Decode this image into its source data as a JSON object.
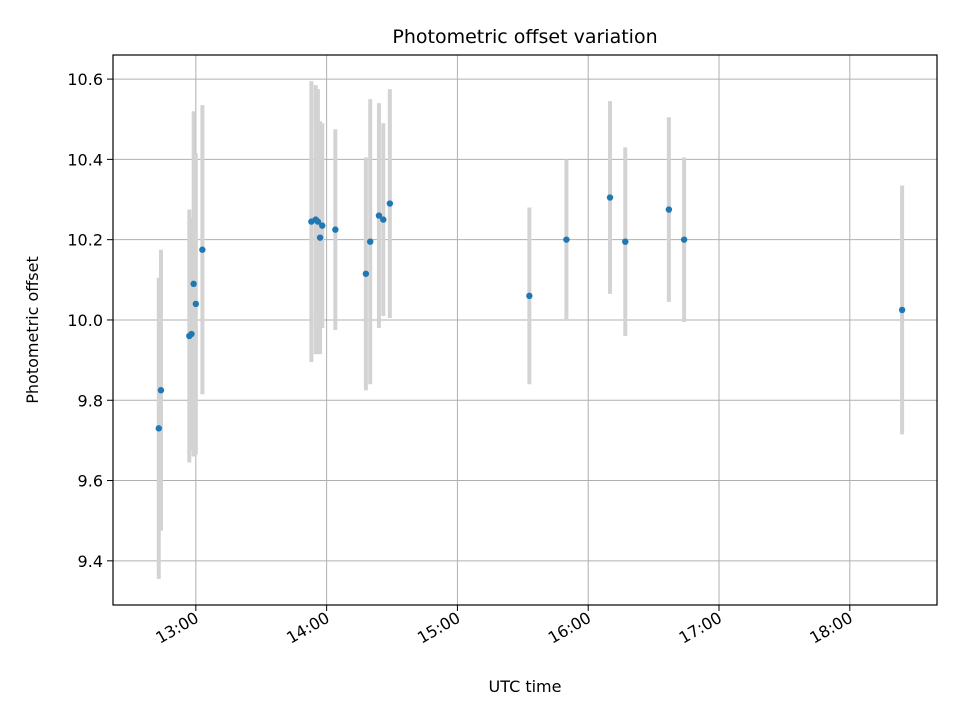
{
  "chart_data": {
    "type": "scatter",
    "title": "Photometric offset variation",
    "xlabel": "UTC time",
    "ylabel": "Photometric offset",
    "x_is_time": true,
    "xlim": [
      "12:22",
      "18:40"
    ],
    "ylim": [
      9.29,
      10.66
    ],
    "xticks": [
      "13:00",
      "14:00",
      "15:00",
      "16:00",
      "17:00",
      "18:00"
    ],
    "yticks": [
      9.4,
      9.6,
      9.8,
      10.0,
      10.2,
      10.4,
      10.6
    ],
    "grid": true,
    "colors": {
      "point": "#1f77b4",
      "errorbar": "#d3d3d3",
      "grid": "#b0b0b0"
    },
    "series": [
      {
        "points": [
          {
            "x": "12:43",
            "y": 9.73,
            "yerr": 0.375
          },
          {
            "x": "12:44",
            "y": 9.825,
            "yerr": 0.35
          },
          {
            "x": "12:57",
            "y": 9.96,
            "yerr": 0.315
          },
          {
            "x": "12:58",
            "y": 9.965,
            "yerr": 0.29
          },
          {
            "x": "12:59",
            "y": 10.09,
            "yerr": 0.43
          },
          {
            "x": "13:00",
            "y": 10.04,
            "yerr": 0.375
          },
          {
            "x": "13:03",
            "y": 10.175,
            "yerr": 0.36
          },
          {
            "x": "13:53",
            "y": 10.245,
            "yerr": 0.35
          },
          {
            "x": "13:55",
            "y": 10.25,
            "yerr": 0.335
          },
          {
            "x": "13:56",
            "y": 10.245,
            "yerr": 0.33
          },
          {
            "x": "13:57",
            "y": 10.205,
            "yerr": 0.29
          },
          {
            "x": "13:58",
            "y": 10.235,
            "yerr": 0.255
          },
          {
            "x": "14:04",
            "y": 10.225,
            "yerr": 0.25
          },
          {
            "x": "14:18",
            "y": 10.115,
            "yerr": 0.29
          },
          {
            "x": "14:20",
            "y": 10.195,
            "yerr": 0.355
          },
          {
            "x": "14:24",
            "y": 10.26,
            "yerr": 0.28
          },
          {
            "x": "14:26",
            "y": 10.25,
            "yerr": 0.24
          },
          {
            "x": "14:29",
            "y": 10.29,
            "yerr": 0.285
          },
          {
            "x": "15:33",
            "y": 10.06,
            "yerr": 0.22
          },
          {
            "x": "15:50",
            "y": 10.2,
            "yerr": 0.2
          },
          {
            "x": "16:10",
            "y": 10.305,
            "yerr": 0.24
          },
          {
            "x": "16:17",
            "y": 10.195,
            "yerr": 0.235
          },
          {
            "x": "16:37",
            "y": 10.275,
            "yerr": 0.23
          },
          {
            "x": "16:44",
            "y": 10.2,
            "yerr": 0.205
          },
          {
            "x": "18:24",
            "y": 10.025,
            "yerr": 0.31
          }
        ]
      }
    ]
  }
}
